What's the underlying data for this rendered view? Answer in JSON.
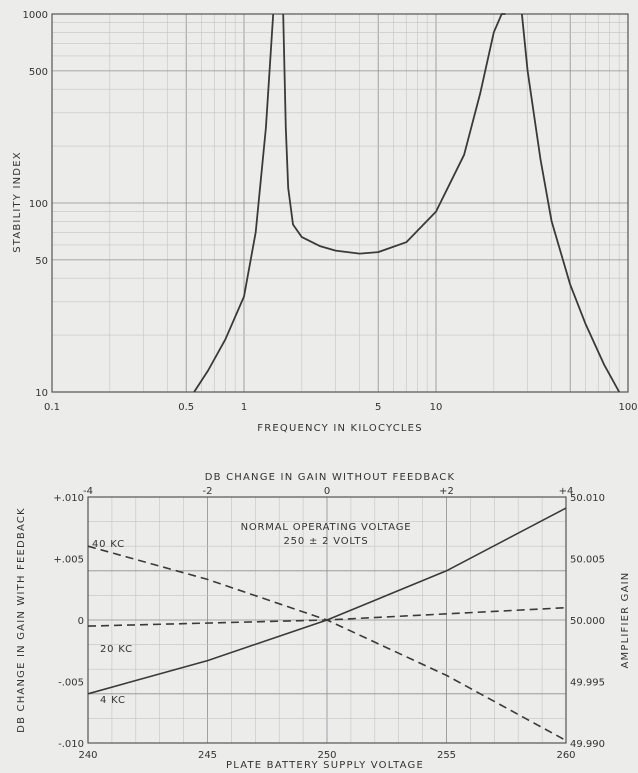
{
  "chart_data": [
    {
      "type": "line",
      "x_scale": "log",
      "y_scale": "log",
      "xlim": [
        0.1,
        100
      ],
      "ylim": [
        10,
        1000
      ],
      "xlabel": "FREQUENCY IN KILOCYCLES",
      "ylabel": "STABILITY INDEX",
      "x_tick_labels": [
        "0.1",
        "0.5",
        "1",
        "5",
        "10",
        "100"
      ],
      "x_ticks": [
        0.1,
        0.5,
        1,
        5,
        10,
        100
      ],
      "y_tick_labels": [
        "10",
        "50",
        "100",
        "500",
        "1000"
      ],
      "y_ticks": [
        10,
        50,
        100,
        500,
        1000
      ],
      "grid": true,
      "series": [
        {
          "x": [
            0.55,
            0.65,
            0.8,
            1.0,
            1.15,
            1.3,
            1.42
          ],
          "y": [
            10,
            13,
            19,
            32,
            70,
            250,
            1000
          ]
        },
        {
          "x": [
            1.6,
            1.65,
            1.7,
            1.8,
            2.0,
            2.5,
            3.0,
            4.0,
            5.0,
            7.0,
            10.0,
            14.0,
            17.0,
            20.0,
            22.0,
            23.0
          ],
          "y": [
            1000,
            250,
            120,
            77,
            66,
            59,
            56,
            54,
            55,
            62,
            90,
            180,
            380,
            800,
            1000,
            1000
          ]
        },
        {
          "x": [
            28.0,
            30.0,
            35.0,
            40.0,
            50.0,
            60.0,
            75.0,
            90.0
          ],
          "y": [
            1000,
            500,
            170,
            80,
            37,
            23,
            14,
            10
          ]
        }
      ]
    },
    {
      "type": "line",
      "xlim": [
        240,
        260
      ],
      "ylim": [
        -0.01,
        0.01
      ],
      "xlabel": "PLATE BATTERY SUPPLY VOLTAGE",
      "ylabel": "DB CHANGE IN GAIN WITH FEEDBACK",
      "x_tick_labels": [
        "240",
        "245",
        "250",
        "255",
        "260"
      ],
      "x_ticks": [
        240,
        245,
        250,
        255,
        260
      ],
      "y_tick_labels": [
        "+.010",
        "+.005",
        "0",
        "-.005",
        "-.010"
      ],
      "y_ticks": [
        0.01,
        0.005,
        0,
        -0.005,
        -0.01
      ],
      "x2label": "DB CHANGE IN GAIN WITHOUT FEEDBACK",
      "x2_tick_labels": [
        "-4",
        "-2",
        "0",
        "+2",
        "+4"
      ],
      "x2_ticks": [
        -4,
        -2,
        0,
        2,
        4
      ],
      "y2label": "AMPLIFIER GAIN",
      "y2_tick_labels": [
        "50.010",
        "50.005",
        "50.000",
        "49.995",
        "49.990"
      ],
      "y2_ticks": [
        50.01,
        50.005,
        50.0,
        49.995,
        49.99
      ],
      "grid": true,
      "annotation_lines": [
        "NORMAL OPERATING VOLTAGE",
        "250 ± 2 VOLTS"
      ],
      "series": [
        {
          "name": "40 KC",
          "style": "dashed",
          "x": [
            240,
            245,
            250,
            255,
            260
          ],
          "y": [
            0.006,
            0.0033,
            0.0,
            -0.0045,
            -0.0098
          ]
        },
        {
          "name": "20 KC",
          "style": "dashed",
          "x": [
            240,
            250,
            260
          ],
          "y": [
            -0.0005,
            0.0,
            0.001
          ]
        },
        {
          "name": "4 KC",
          "style": "solid",
          "x": [
            240,
            245,
            250,
            255,
            260
          ],
          "y": [
            -0.006,
            -0.0033,
            0.0,
            0.004,
            0.0091
          ]
        }
      ]
    }
  ]
}
